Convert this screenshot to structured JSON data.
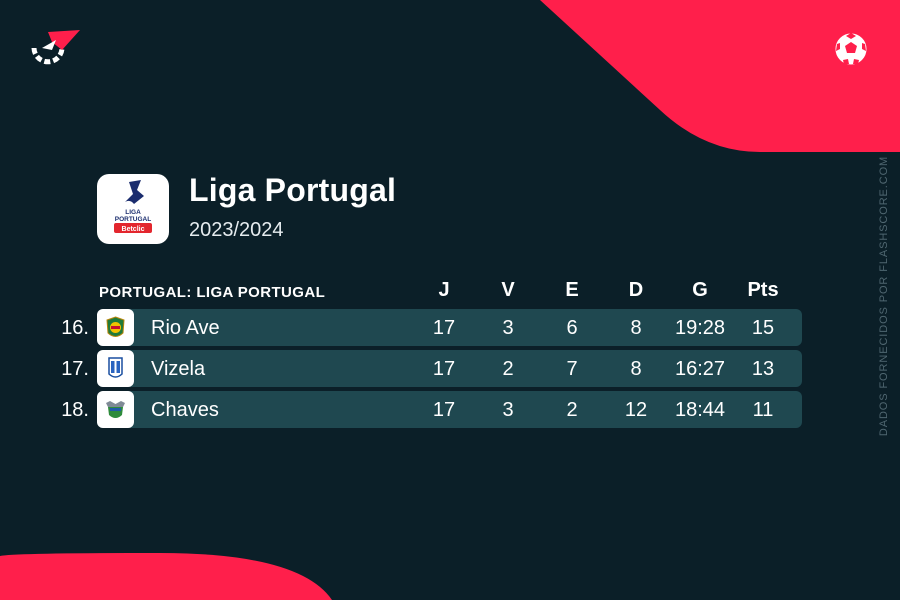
{
  "brand": {
    "logo_icon": "flashscore-logo-icon",
    "sport_icon": "football-icon"
  },
  "side_note": "DADOS FORNECIDOS POR FLASHSCORE.COM",
  "league": {
    "title": "Liga Portugal",
    "season": "2023/2024",
    "logo_text": {
      "line1": "LIGA",
      "line2": "PORTUGAL",
      "sponsor": "Betclic"
    }
  },
  "table": {
    "label": "PORTUGAL: LIGA PORTUGAL",
    "columns": [
      "J",
      "V",
      "E",
      "D",
      "G",
      "Pts"
    ],
    "rows": [
      {
        "rank": "16.",
        "team": "Rio Ave",
        "j": "17",
        "v": "3",
        "e": "6",
        "d": "8",
        "g": "19:28",
        "pts": "15"
      },
      {
        "rank": "17.",
        "team": "Vizela",
        "j": "17",
        "v": "2",
        "e": "7",
        "d": "8",
        "g": "16:27",
        "pts": "13"
      },
      {
        "rank": "18.",
        "team": "Chaves",
        "j": "17",
        "v": "3",
        "e": "2",
        "d": "12",
        "g": "18:44",
        "pts": "11"
      }
    ]
  },
  "colors": {
    "background": "#0b1f28",
    "accent": "#ff1f4b",
    "row": "#1f4850"
  }
}
